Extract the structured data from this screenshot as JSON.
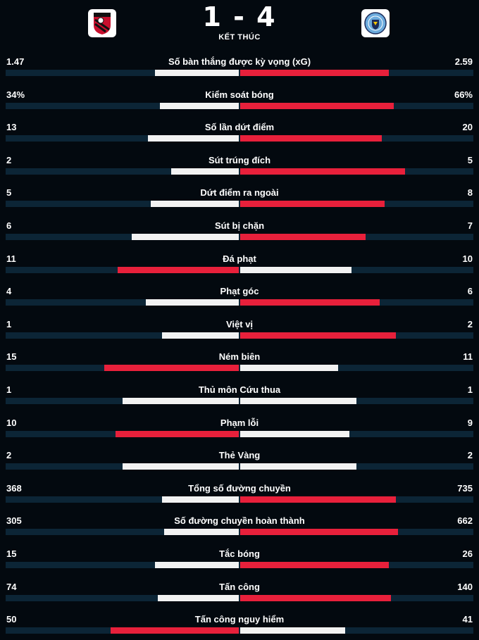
{
  "match": {
    "score": "1 - 4",
    "status": "KẾT THÚC",
    "home_crest_icon": "bournemouth-crest-icon",
    "away_crest_icon": "man-city-crest-icon"
  },
  "colors": {
    "background": "#03090f",
    "track": "#0c2536",
    "leader": "#e8203b",
    "trailer": "#f2f2f2"
  },
  "stats": [
    {
      "label": "Số bàn thắng được kỳ vọng (xG)",
      "home": "1.47",
      "away": "2.59",
      "home_share": 0.36,
      "away_share": 0.64
    },
    {
      "label": "Kiểm soát bóng",
      "home": "34%",
      "away": "66%",
      "home_share": 0.34,
      "away_share": 0.66
    },
    {
      "label": "Số lần dứt điểm",
      "home": "13",
      "away": "20",
      "home_share": 0.39,
      "away_share": 0.61
    },
    {
      "label": "Sút trúng đích",
      "home": "2",
      "away": "5",
      "home_share": 0.29,
      "away_share": 0.71
    },
    {
      "label": "Dứt điểm ra ngoài",
      "home": "5",
      "away": "8",
      "home_share": 0.38,
      "away_share": 0.62
    },
    {
      "label": "Sút bị chặn",
      "home": "6",
      "away": "7",
      "home_share": 0.46,
      "away_share": 0.54
    },
    {
      "label": "Đá phạt",
      "home": "11",
      "away": "10",
      "home_share": 0.52,
      "away_share": 0.48
    },
    {
      "label": "Phạt góc",
      "home": "4",
      "away": "6",
      "home_share": 0.4,
      "away_share": 0.6
    },
    {
      "label": "Việt vị",
      "home": "1",
      "away": "2",
      "home_share": 0.33,
      "away_share": 0.67
    },
    {
      "label": "Ném biên",
      "home": "15",
      "away": "11",
      "home_share": 0.58,
      "away_share": 0.42
    },
    {
      "label": "Thủ môn Cứu thua",
      "home": "1",
      "away": "1",
      "home_share": 0.5,
      "away_share": 0.5
    },
    {
      "label": "Phạm lỗi",
      "home": "10",
      "away": "9",
      "home_share": 0.53,
      "away_share": 0.47
    },
    {
      "label": "Thẻ Vàng",
      "home": "2",
      "away": "2",
      "home_share": 0.5,
      "away_share": 0.5
    },
    {
      "label": "Tổng số đường chuyền",
      "home": "368",
      "away": "735",
      "home_share": 0.33,
      "away_share": 0.67
    },
    {
      "label": "Số đường chuyền hoàn thành",
      "home": "305",
      "away": "662",
      "home_share": 0.32,
      "away_share": 0.68
    },
    {
      "label": "Tắc bóng",
      "home": "15",
      "away": "26",
      "home_share": 0.36,
      "away_share": 0.64
    },
    {
      "label": "Tấn công",
      "home": "74",
      "away": "140",
      "home_share": 0.35,
      "away_share": 0.65
    },
    {
      "label": "Tấn công nguy hiểm",
      "home": "50",
      "away": "41",
      "home_share": 0.55,
      "away_share": 0.45
    }
  ]
}
